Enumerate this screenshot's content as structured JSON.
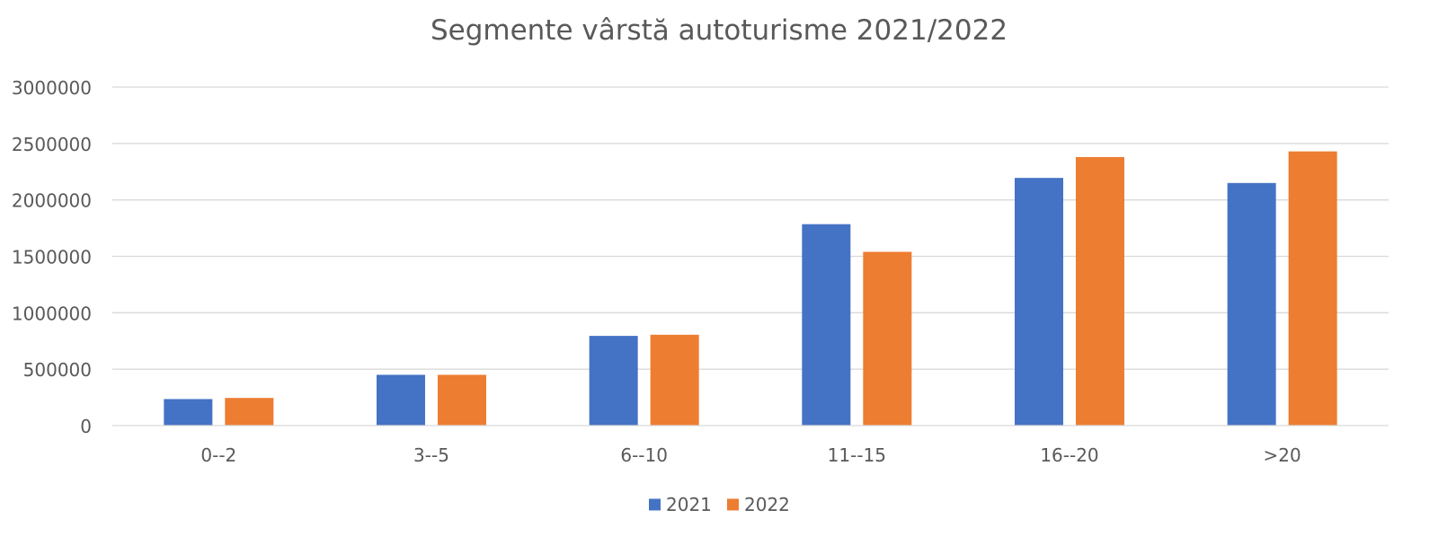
{
  "chart_data": {
    "type": "bar",
    "title": "Segmente vârstă autoturisme 2021/2022",
    "xlabel": "",
    "ylabel": "",
    "categories": [
      "0--2",
      "3--5",
      "6--10",
      "11--15",
      "16--20",
      ">20"
    ],
    "series": [
      {
        "name": "2021",
        "color": "#4472C4",
        "values": [
          235000,
          450000,
          795000,
          1785000,
          2195000,
          2150000
        ]
      },
      {
        "name": "2022",
        "color": "#ED7D31",
        "values": [
          245000,
          450000,
          805000,
          1540000,
          2380000,
          2430000
        ]
      }
    ],
    "ylim": [
      0,
      3000000
    ],
    "yticks": [
      "0",
      "500000",
      "1000000",
      "1500000",
      "2000000",
      "2500000",
      "3000000"
    ],
    "grid": true,
    "legend_position": "bottom"
  }
}
